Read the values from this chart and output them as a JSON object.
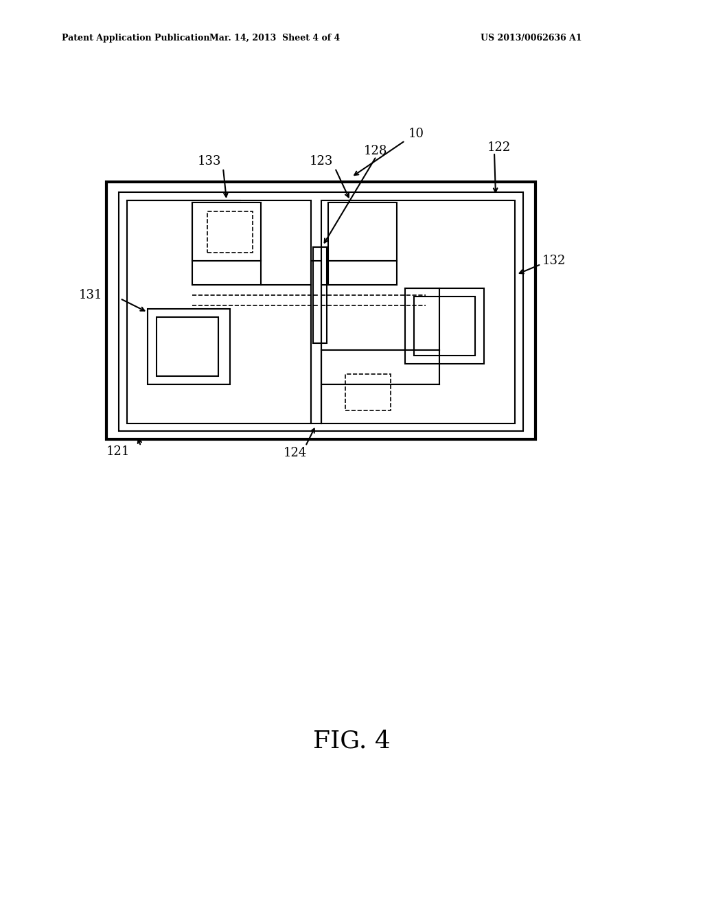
{
  "bg_color": "#ffffff",
  "line_color": "#000000",
  "header_left": "Patent Application Publication",
  "header_mid": "Mar. 14, 2013  Sheet 4 of 4",
  "header_right": "US 2013/0062636 A1",
  "figure_label": "FIG. 4",
  "ref_10": "10",
  "ref_121": "121",
  "ref_122": "122",
  "ref_123": "123",
  "ref_124": "124",
  "ref_128": "128",
  "ref_131": "131",
  "ref_132": "132",
  "ref_133": "133"
}
